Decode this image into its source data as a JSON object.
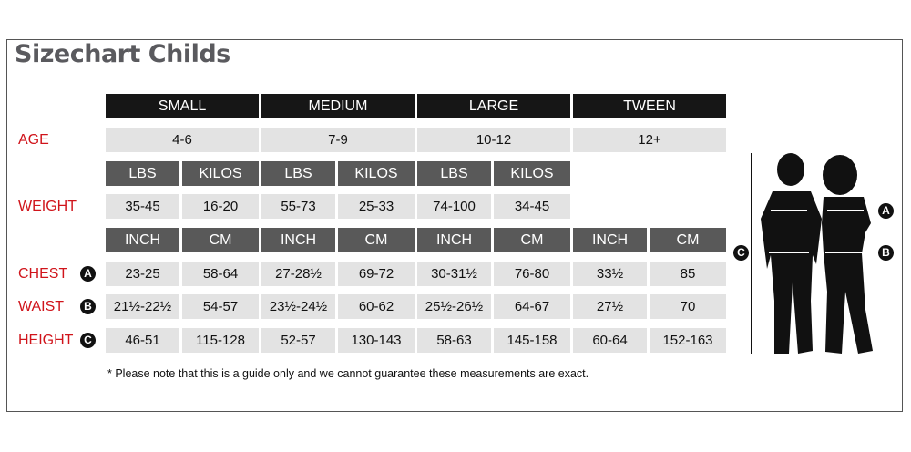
{
  "title": "Sizechart Childs",
  "sizes": [
    "SMALL",
    "MEDIUM",
    "LARGE",
    "TWEEN"
  ],
  "age": {
    "label": "AGE",
    "values": [
      "4-6",
      "7-9",
      "10-12",
      "12+"
    ]
  },
  "weight": {
    "label": "WEIGHT",
    "units": [
      "LBS",
      "KILOS"
    ],
    "values": [
      [
        "35-45",
        "16-20"
      ],
      [
        "55-73",
        "25-33"
      ],
      [
        "74-100",
        "34-45"
      ]
    ]
  },
  "measure_units": [
    "INCH",
    "CM"
  ],
  "rows": [
    {
      "label": "CHEST",
      "badge": "A",
      "values": [
        [
          "23-25",
          "58-64"
        ],
        [
          "27-28½",
          "69-72"
        ],
        [
          "30-31½",
          "76-80"
        ],
        [
          "33½",
          "85"
        ]
      ]
    },
    {
      "label": "WAIST",
      "badge": "B",
      "values": [
        [
          "21½-22½",
          "54-57"
        ],
        [
          "23½-24½",
          "60-62"
        ],
        [
          "25½-26½",
          "64-67"
        ],
        [
          "27½",
          "70"
        ]
      ]
    },
    {
      "label": "HEIGHT",
      "badge": "C",
      "values": [
        [
          "46-51",
          "115-128"
        ],
        [
          "52-57",
          "130-143"
        ],
        [
          "58-63",
          "145-158"
        ],
        [
          "60-64",
          "152-163"
        ]
      ]
    }
  ],
  "note": "* Please note that this is a guide only and we cannot guarantee these measurements are exact.",
  "figure": {
    "badges": [
      "A",
      "B",
      "C"
    ]
  },
  "colors": {
    "header": "#161616",
    "unit_header": "#595959",
    "value_bg": "#e3e3e3",
    "label": "#d0141b"
  }
}
